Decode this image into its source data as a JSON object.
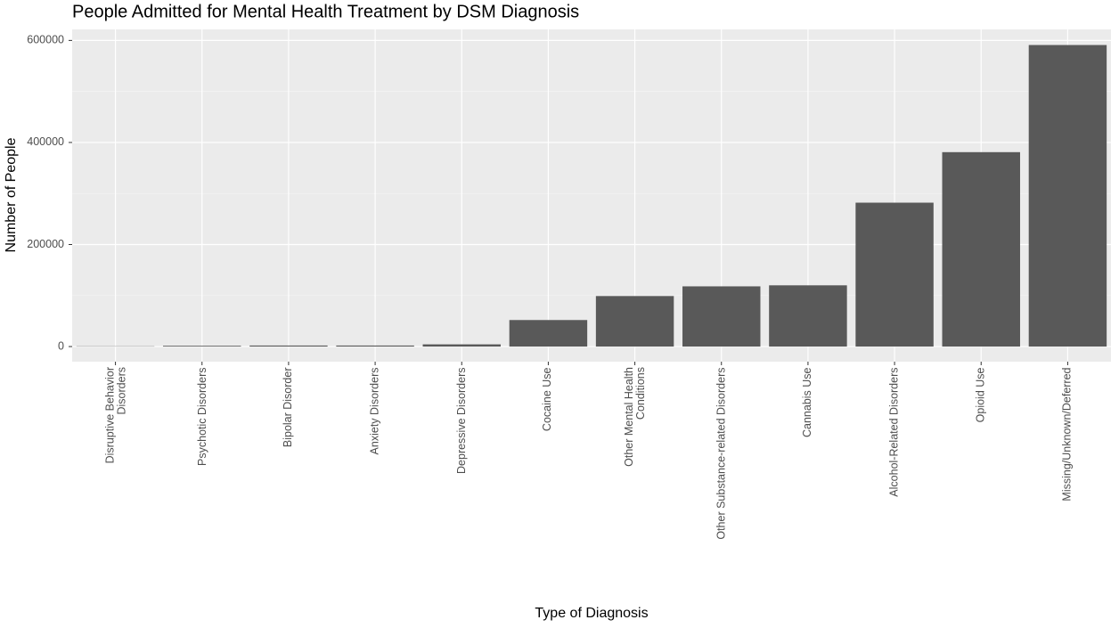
{
  "chart_data": {
    "type": "bar",
    "title": "People Admitted for Mental Health Treatment by DSM Diagnosis",
    "x_label": "Type of Diagnosis",
    "y_label": "Number of People",
    "categories": [
      "Disruptive Behavior\nDisorders",
      "Psychotic Disorders",
      "Bipolar Disorder",
      "Anxiety Disorders",
      "Depressive Disorders",
      "Cocaine Use",
      "Other Mental Health\nConditions",
      "Other Substance-related Disorders",
      "Cannabis Use",
      "Alcohol-Related Disorders",
      "Opioid Use",
      "Missing/Unknown/Deferred"
    ],
    "values": [
      500,
      1500,
      2000,
      2000,
      4300,
      52000,
      99000,
      118000,
      120000,
      282000,
      381000,
      591000
    ],
    "color": "#595959",
    "ylim": [
      -29600,
      621600
    ],
    "yticks": [
      0,
      200000,
      400000,
      600000
    ],
    "grid": true
  }
}
